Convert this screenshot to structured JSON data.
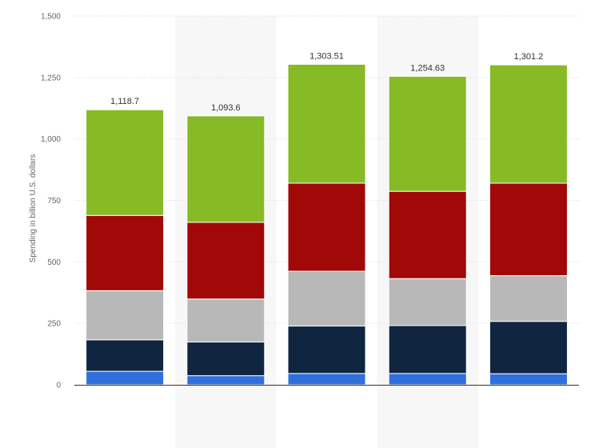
{
  "chart_data": {
    "type": "bar",
    "stacked": true,
    "title": "",
    "xlabel": "",
    "ylabel": "Spending in billion U.S. dollars",
    "ylim": [
      0,
      1500
    ],
    "yticks": [
      0,
      250,
      500,
      750,
      1000,
      1250,
      1500
    ],
    "ytick_labels": [
      "0",
      "250",
      "500",
      "750",
      "1,000",
      "1,250",
      "1,500"
    ],
    "grid": true,
    "categories": [
      "",
      "",
      "",
      "",
      ""
    ],
    "totals": [
      1118.7,
      1093.6,
      1303.51,
      1254.63,
      1301.2
    ],
    "total_labels": [
      "1,118.7",
      "1,093.6",
      "1,303.51",
      "1,254.63",
      "1,301.2"
    ],
    "series": [
      {
        "color": "#2f6fde",
        "values": [
          55,
          37,
          46,
          46,
          45
        ]
      },
      {
        "color": "#0f2540",
        "values": [
          128,
          137,
          193,
          195,
          213
        ]
      },
      {
        "color": "#b8b8b8",
        "values": [
          200,
          175,
          223,
          191,
          186
        ]
      },
      {
        "color": "#a10808",
        "values": [
          306,
          312,
          358,
          355,
          376
        ]
      },
      {
        "color": "#86bb25",
        "values": [
          429.7,
          432.6,
          483.51,
          467.63,
          481.2
        ]
      }
    ],
    "band_fill": "#f7f7f7"
  }
}
